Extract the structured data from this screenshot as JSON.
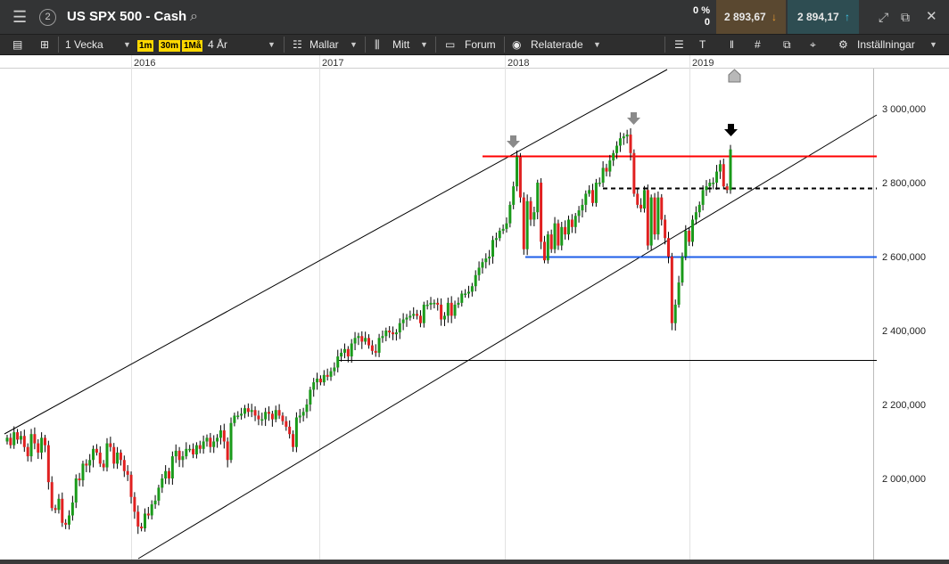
{
  "header": {
    "title": "US SPX 500 - Cash",
    "tab_number": "2",
    "change_percent": "0 %",
    "change_value": "0",
    "sell_price": "2 893,67",
    "buy_price": "2 894,17",
    "icons": [
      "menu-icon",
      "search-icon",
      "expand-icon",
      "popout-icon",
      "close-icon"
    ]
  },
  "toolbar": {
    "period": "1 Vecka",
    "quick": [
      "1m",
      "30m",
      "1Må"
    ],
    "range": "4 År",
    "templates": "Mallar",
    "indicators": "Mitt",
    "forum": "Forum",
    "related": "Relaterade",
    "settings": "Inställningar"
  },
  "colors": {
    "up": "#1a9a1a",
    "down": "#e02020",
    "resistance": "#ff0000",
    "support": "#1e5ee8",
    "accent_sell": "#f0a030",
    "accent_buy": "#40c8e8"
  },
  "chart_data": {
    "type": "candlestick",
    "x_labels": [
      "2016",
      "2017",
      "2018",
      "2019"
    ],
    "y_ticks": [
      "3 000,000",
      "2 800,000",
      "2 600,000",
      "2 400,000",
      "2 200,000",
      "2 000,000"
    ],
    "ylim": [
      1790,
      3100
    ],
    "horizontal_lines": [
      {
        "name": "resistance",
        "value": 2873,
        "style": "solid",
        "color": "#ff0000"
      },
      {
        "name": "dashed",
        "value": 2785,
        "style": "dashed",
        "color": "#000000"
      },
      {
        "name": "support",
        "value": 2600,
        "style": "solid",
        "color": "#1e5ee8"
      },
      {
        "name": "low",
        "value": 2320,
        "style": "solid",
        "color": "#000000"
      }
    ],
    "closes": [
      2110,
      2090,
      2125,
      2105,
      2115,
      2085,
      2060,
      2120,
      2095,
      2070,
      2110,
      2090,
      1990,
      1920,
      1915,
      1945,
      1880,
      1875,
      1900,
      1935,
      2000,
      1995,
      2040,
      2035,
      2050,
      2080,
      2070,
      2040,
      2030,
      2095,
      2085,
      2040,
      2070,
      2050,
      2020,
      2010,
      1950,
      1910,
      1870,
      1865,
      1905,
      1900,
      1930,
      1940,
      1975,
      2000,
      2020,
      2000,
      2060,
      2075,
      2050,
      2060,
      2080,
      2080,
      2065,
      2090,
      2080,
      2100,
      2110,
      2085,
      2100,
      2110,
      2130,
      2100,
      2050,
      2150,
      2170,
      2170,
      2175,
      2190,
      2180,
      2185,
      2170,
      2160,
      2160,
      2180,
      2175,
      2160,
      2185,
      2170,
      2155,
      2140,
      2120,
      2085,
      2165,
      2170,
      2180,
      2200,
      2240,
      2260,
      2270,
      2260,
      2280,
      2275,
      2290,
      2300,
      2330,
      2340,
      2350,
      2330,
      2365,
      2380,
      2385,
      2370,
      2380,
      2360,
      2345,
      2340,
      2380,
      2385,
      2400,
      2395,
      2390,
      2395,
      2420,
      2430,
      2435,
      2440,
      2445,
      2440,
      2420,
      2470,
      2470,
      2475,
      2475,
      2470,
      2430,
      2440,
      2475,
      2440,
      2470,
      2475,
      2500,
      2500,
      2505,
      2520,
      2550,
      2570,
      2585,
      2595,
      2600,
      2645,
      2650,
      2670,
      2675,
      2690,
      2740,
      2790,
      2870,
      2760,
      2620,
      2750,
      2700,
      2720,
      2800,
      2640,
      2590,
      2660,
      2620,
      2690,
      2630,
      2680,
      2660,
      2700,
      2680,
      2710,
      2725,
      2740,
      2770,
      2780,
      2745,
      2800,
      2800,
      2840,
      2830,
      2860,
      2880,
      2900,
      2920,
      2925,
      2930,
      2880,
      2770,
      2740,
      2730,
      2780,
      2630,
      2760,
      2660,
      2760,
      2700,
      2650,
      2600,
      2420,
      2470,
      2530,
      2600,
      2670,
      2640,
      2700,
      2720,
      2740,
      2780,
      2790,
      2800,
      2800,
      2830,
      2850,
      2790,
      2780,
      2890
    ]
  }
}
